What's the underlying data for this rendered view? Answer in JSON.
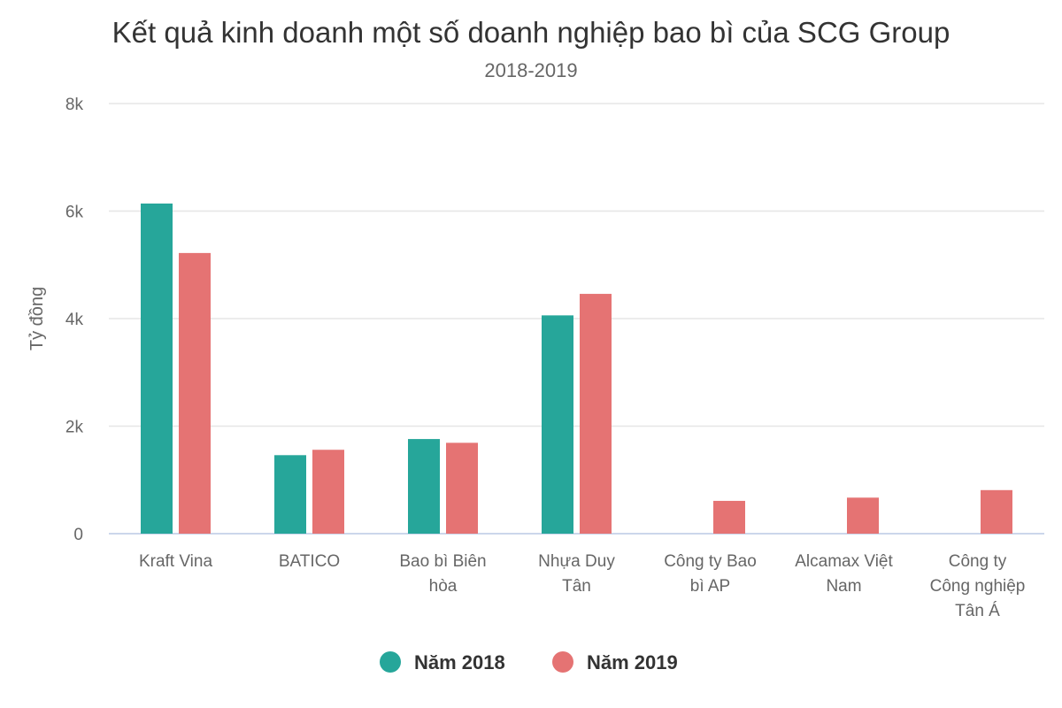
{
  "chart_data": {
    "type": "bar",
    "title": "Kết quả kinh doanh một số doanh nghiệp bao bì của SCG Group",
    "subtitle": "2018-2019",
    "xlabel": "",
    "ylabel": "Tỷ đồng",
    "ylim": [
      0,
      8000
    ],
    "yticks": [
      0,
      2000,
      4000,
      6000,
      8000
    ],
    "ytick_labels": [
      "0",
      "2k",
      "4k",
      "6k",
      "8k"
    ],
    "grid": true,
    "legend_position": "bottom",
    "categories": [
      [
        "Kraft Vina"
      ],
      [
        "BATICO"
      ],
      [
        "Bao bì Biên",
        "hòa"
      ],
      [
        "Nhựa Duy",
        "Tân"
      ],
      [
        "Công ty Bao",
        "bì AP"
      ],
      [
        "Alcamax Việt",
        "Nam"
      ],
      [
        "Công ty",
        "Công nghiệp",
        "Tân Á"
      ]
    ],
    "series": [
      {
        "name": "Năm 2018",
        "color": "#26a69a",
        "values": [
          6140,
          1460,
          1760,
          4060,
          null,
          null,
          null
        ]
      },
      {
        "name": "Năm 2019",
        "color": "#e57373",
        "values": [
          5220,
          1560,
          1690,
          4460,
          610,
          670,
          810
        ]
      }
    ]
  }
}
